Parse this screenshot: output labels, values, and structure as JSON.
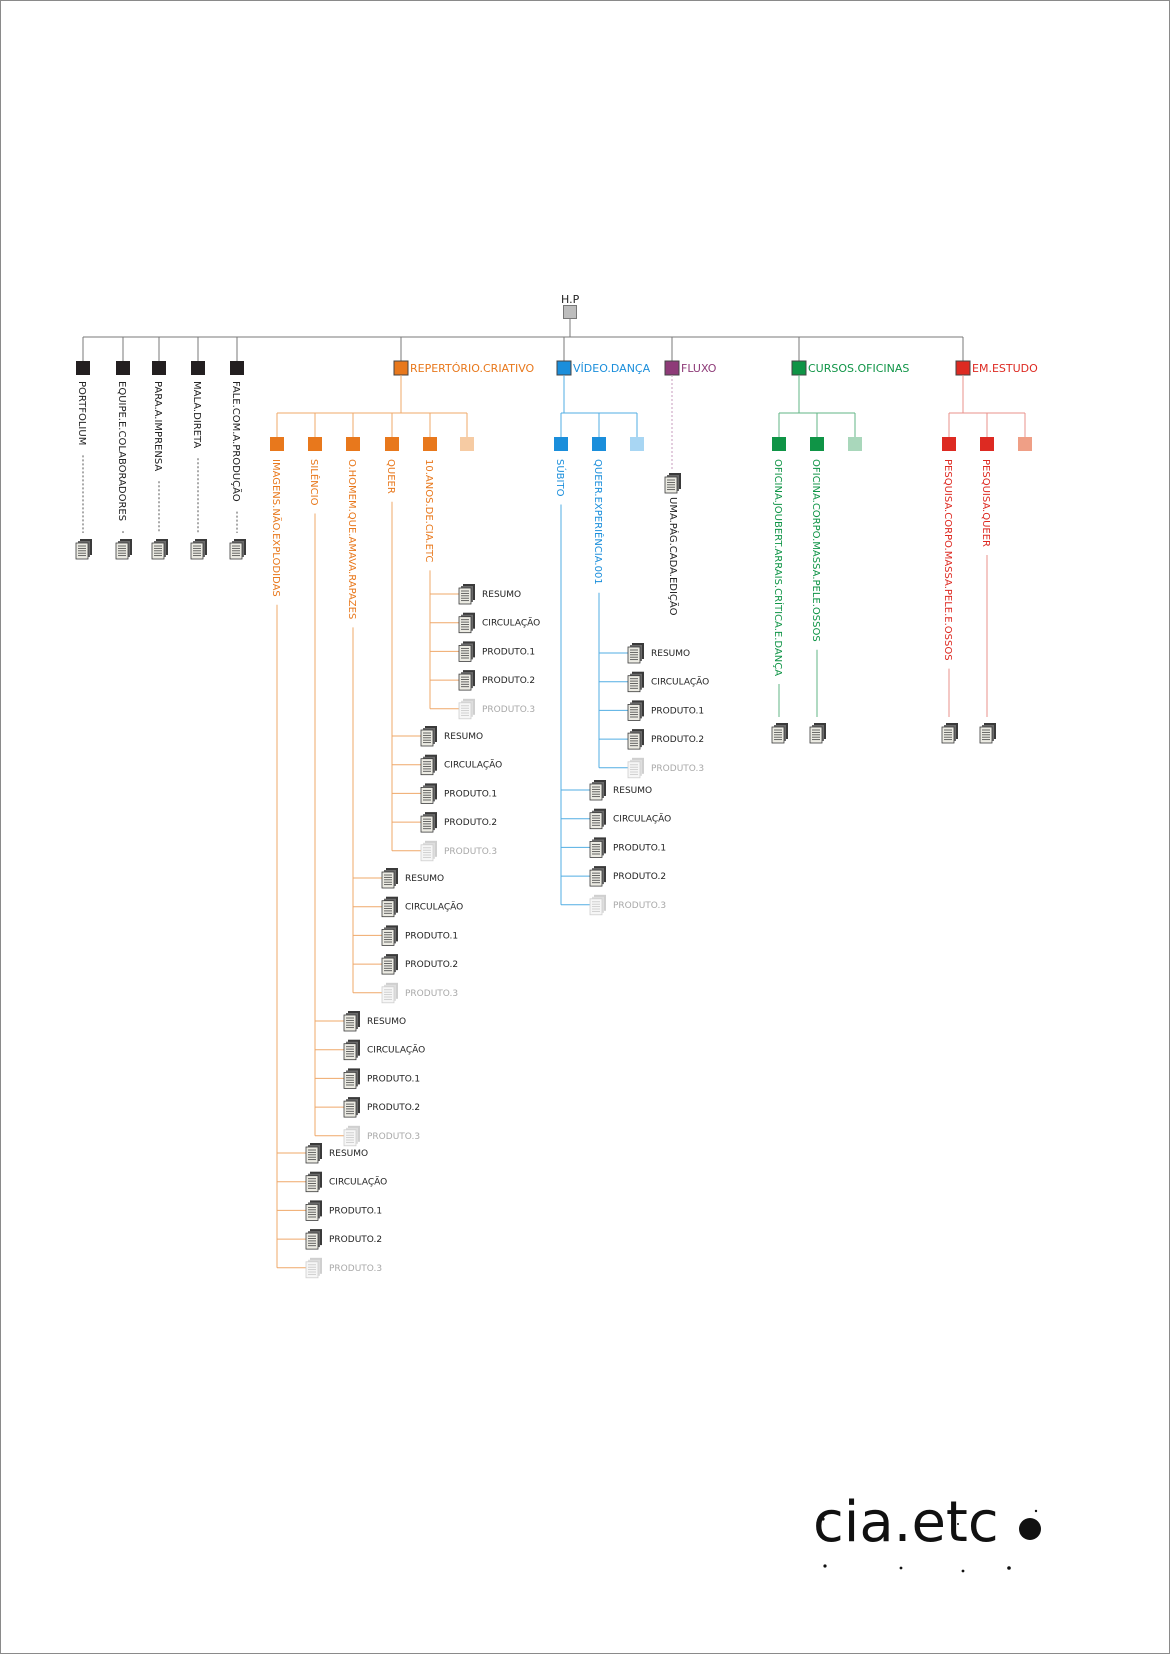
{
  "root": {
    "label": "H.P",
    "color": "#bdbdbd"
  },
  "top_items": [
    {
      "label": "PORTFOLIUM"
    },
    {
      "label": "EQUIPE.E.COLABORADORES"
    },
    {
      "label": "PARA.A.IMPRENSA"
    },
    {
      "label": "MALA.DIRETA"
    },
    {
      "label": "FALE.COM.A.PRODUÇÃO"
    }
  ],
  "sections": [
    {
      "label": "REPERTÓRIO.CRIATIVO",
      "color": "#e8781c",
      "line_color": "#efa86a",
      "light_color": "#f6cba3",
      "has_placeholder": true,
      "children": [
        {
          "label": "IMAGENS.NÃO.EXPLODIDAS",
          "docs": [
            {
              "label": "RESUMO"
            },
            {
              "label": "CIRCULAÇÃO"
            },
            {
              "label": "PRODUTO.1"
            },
            {
              "label": "PRODUTO.2"
            },
            {
              "label": "PRODUTO.3",
              "inactive": true
            }
          ]
        },
        {
          "label": "SILÊNCIO",
          "docs": [
            {
              "label": "RESUMO"
            },
            {
              "label": "CIRCULAÇÃO"
            },
            {
              "label": "PRODUTO.1"
            },
            {
              "label": "PRODUTO.2"
            },
            {
              "label": "PRODUTO.3",
              "inactive": true
            }
          ]
        },
        {
          "label": "O.HOMEM.QUE.AMAVA.RAPAZES",
          "docs": [
            {
              "label": "RESUMO"
            },
            {
              "label": "CIRCULAÇÃO"
            },
            {
              "label": "PRODUTO.1"
            },
            {
              "label": "PRODUTO.2"
            },
            {
              "label": "PRODUTO.3",
              "inactive": true
            }
          ]
        },
        {
          "label": "QUEER",
          "docs": [
            {
              "label": "RESUMO"
            },
            {
              "label": "CIRCULAÇÃO"
            },
            {
              "label": "PRODUTO.1"
            },
            {
              "label": "PRODUTO.2"
            },
            {
              "label": "PRODUTO.3",
              "inactive": true
            }
          ]
        },
        {
          "label": "10.ANOS.DE.CIA.ETC",
          "docs": [
            {
              "label": "RESUMO"
            },
            {
              "label": "CIRCULAÇÃO"
            },
            {
              "label": "PRODUTO.1"
            },
            {
              "label": "PRODUTO.2"
            },
            {
              "label": "PRODUTO.3",
              "inactive": true
            }
          ]
        }
      ]
    },
    {
      "label": "VÍDEO.DANÇA",
      "color": "#1a8edb",
      "line_color": "#52aee3",
      "light_color": "#a8d6f3",
      "has_placeholder": true,
      "children": [
        {
          "label": "SÚBITO",
          "docs": [
            {
              "label": "RESUMO"
            },
            {
              "label": "CIRCULAÇÃO"
            },
            {
              "label": "PRODUTO.1"
            },
            {
              "label": "PRODUTO.2"
            },
            {
              "label": "PRODUTO.3",
              "inactive": true
            }
          ]
        },
        {
          "label": "QUEER.EXPERIÊNCIA.001",
          "docs": [
            {
              "label": "RESUMO"
            },
            {
              "label": "CIRCULAÇÃO"
            },
            {
              "label": "PRODUTO.1"
            },
            {
              "label": "PRODUTO.2"
            },
            {
              "label": "PRODUTO.3",
              "inactive": true
            }
          ]
        }
      ]
    },
    {
      "label": "FLUXO",
      "color": "#8e3b78",
      "line_color": "#c79bbc",
      "light_color": "#d9b8cf",
      "has_placeholder": false,
      "single_page": {
        "label": "UMA.PÁG.CADA.EDIÇÃO"
      }
    },
    {
      "label": "CURSOS.OFICINAS",
      "color": "#0f9446",
      "line_color": "#62b585",
      "light_color": "#a9d7bb",
      "has_placeholder": true,
      "children": [
        {
          "label": "OFICINA.JOUBERT.ARRAIS.CRÍTICA.E.DANÇA"
        },
        {
          "label": "OFICINA.CORPO.MASSA.PELE.OSSOS"
        }
      ]
    },
    {
      "label": "EM.ESTUDO",
      "color": "#dd2a22",
      "line_color": "#e8918b",
      "light_color": "#ef9f86",
      "has_placeholder": true,
      "children": [
        {
          "label": "PESQUISA.CORPO.MASSA.PELE.E.OSSOS"
        },
        {
          "label": "PESQUISA.QUEER"
        }
      ]
    }
  ],
  "colors": {
    "trunk": "#7a7a7a",
    "top_item": "#231f20",
    "inactive_text": "#a8a8a8"
  },
  "logo": {
    "text": "cia.etc"
  }
}
